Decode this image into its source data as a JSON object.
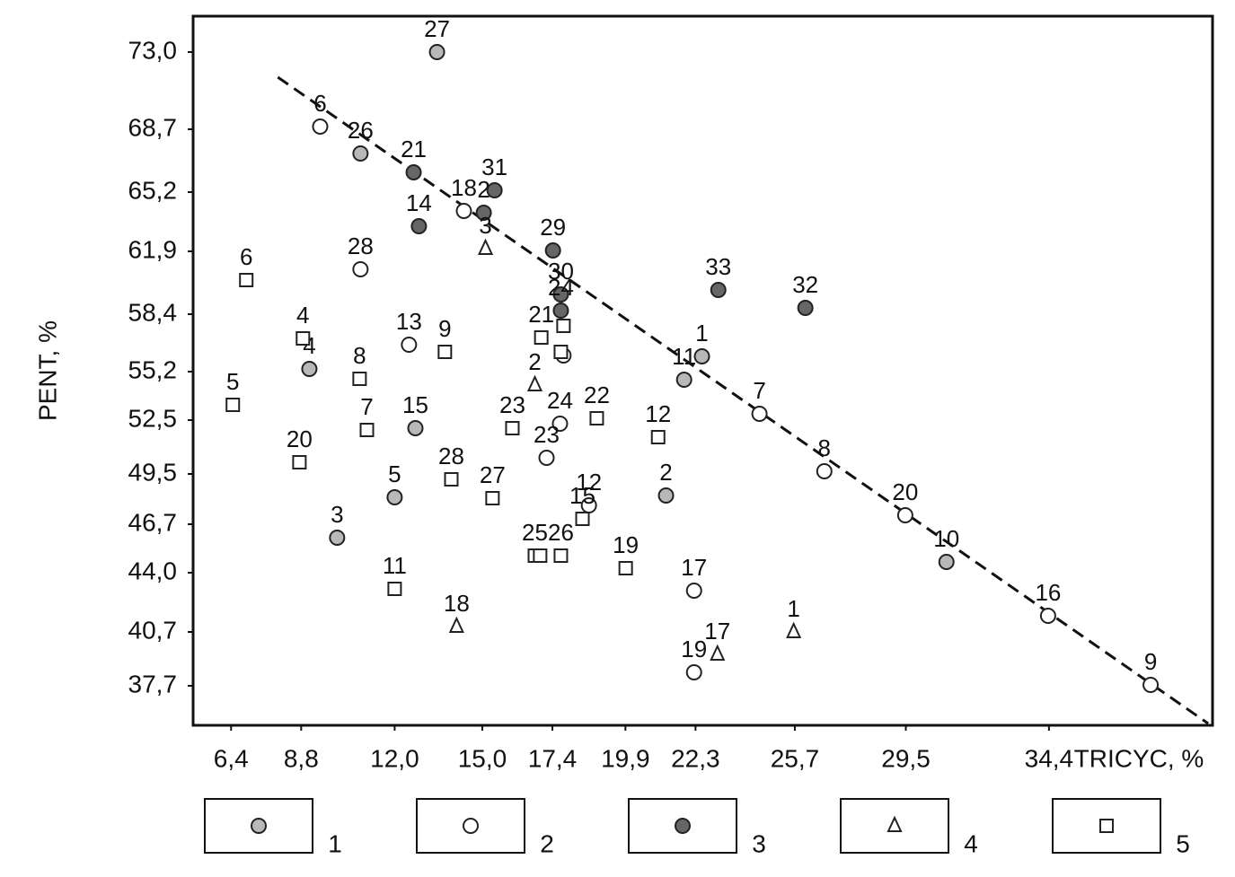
{
  "chart_data": {
    "type": "scatter",
    "x_label": "TRICYC, %",
    "y_label": "PENT, %",
    "xlim": [
      5.1,
      40
    ],
    "ylim": [
      35.5,
      75
    ],
    "xticks": [
      {
        "value": 6.4,
        "label": "6,4"
      },
      {
        "value": 8.8,
        "label": "8,8"
      },
      {
        "value": 12.0,
        "label": "12,0"
      },
      {
        "value": 15.0,
        "label": "15,0"
      },
      {
        "value": 17.4,
        "label": "17,4"
      },
      {
        "value": 19.9,
        "label": "19,9"
      },
      {
        "value": 22.3,
        "label": "22,3"
      },
      {
        "value": 25.7,
        "label": "25,7"
      },
      {
        "value": 29.5,
        "label": "29,5"
      },
      {
        "value": 34.4,
        "label": "34,4"
      }
    ],
    "yticks": [
      {
        "value": 73.0,
        "label": "73,0"
      },
      {
        "value": 68.7,
        "label": "68,7"
      },
      {
        "value": 65.2,
        "label": "65,2"
      },
      {
        "value": 61.9,
        "label": "61,9"
      },
      {
        "value": 58.4,
        "label": "58,4"
      },
      {
        "value": 55.2,
        "label": "55,2"
      },
      {
        "value": 52.5,
        "label": "52,5"
      },
      {
        "value": 49.5,
        "label": "49,5"
      },
      {
        "value": 46.7,
        "label": "46,7"
      },
      {
        "value": 44.0,
        "label": "44,0"
      },
      {
        "value": 40.7,
        "label": "40,7"
      },
      {
        "value": 37.7,
        "label": "37,7"
      }
    ],
    "trend_line": {
      "x": [
        8.0,
        39.85
      ],
      "y": [
        71.6,
        35.6
      ]
    },
    "series": [
      {
        "name": "1",
        "marker": "circle",
        "color": "#b8b8b8",
        "x": [
          13.45,
          10.83,
          22.52,
          21.91,
          12.71,
          9.08,
          12.0,
          21.29,
          10.03,
          30.89
        ],
        "values": [
          73.0,
          67.35,
          56.05,
          54.75,
          52.05,
          55.35,
          48.2,
          48.3,
          45.95,
          44.6
        ],
        "labels": [
          "27",
          "26",
          "1",
          "11",
          "15",
          "4",
          "5",
          "2",
          "3",
          "10"
        ]
      },
      {
        "name": "2",
        "marker": "circle",
        "color": "#ffffff",
        "x": [
          9.45,
          14.37,
          10.83,
          12.49,
          17.78,
          17.66,
          17.2,
          18.65,
          22.25,
          22.25,
          24.49,
          26.71,
          29.48,
          34.37,
          37.88
        ],
        "values": [
          68.85,
          64.15,
          60.9,
          56.7,
          56.1,
          52.3,
          50.4,
          47.75,
          43.0,
          38.45,
          52.85,
          49.65,
          47.2,
          41.6,
          37.75
        ],
        "labels": [
          "6",
          "18",
          "28",
          "13",
          null,
          "24",
          "23",
          "12",
          "17",
          "19",
          "7",
          "8",
          "20",
          "16",
          "9"
        ]
      },
      {
        "name": "3",
        "marker": "circle",
        "color": "#666666",
        "x": [
          12.65,
          15.42,
          15.05,
          12.83,
          17.42,
          17.69,
          17.69,
          23.08,
          26.06
        ],
        "values": [
          66.3,
          65.3,
          64.05,
          63.3,
          61.95,
          59.5,
          58.6,
          59.75,
          58.75
        ],
        "labels": [
          "21",
          "31",
          "2",
          "14",
          "29",
          "30",
          "24",
          "33",
          "32"
        ]
      },
      {
        "name": "4",
        "marker": "triangle",
        "color": "#ffffff",
        "x": [
          15.11,
          16.8,
          14.12,
          23.05,
          25.66
        ],
        "values": [
          62.05,
          54.45,
          41.0,
          39.45,
          40.7
        ],
        "labels": [
          "3",
          "2",
          "18",
          "17",
          "1"
        ]
      },
      {
        "name": "5",
        "marker": "square",
        "color": "#ffffff",
        "x": [
          6.92,
          8.86,
          10.8,
          6.46,
          11.05,
          8.74,
          13.72,
          17.02,
          17.69,
          17.78,
          16.03,
          18.92,
          21.02,
          13.94,
          15.35,
          18.43,
          16.8,
          16.98,
          17.69,
          19.91,
          12.0
        ],
        "values": [
          60.3,
          57.05,
          54.8,
          53.35,
          51.95,
          50.15,
          56.3,
          57.1,
          56.3,
          57.75,
          52.05,
          52.6,
          51.55,
          49.2,
          48.15,
          47.0,
          44.95,
          44.95,
          44.95,
          44.25,
          43.1
        ],
        "labels": [
          "6",
          "4",
          "8",
          "5",
          "7",
          "20",
          "9",
          "21",
          null,
          null,
          "23",
          "22",
          "12",
          "28",
          "27",
          "15",
          "25",
          null,
          "26",
          "19",
          "11"
        ]
      }
    ]
  }
}
